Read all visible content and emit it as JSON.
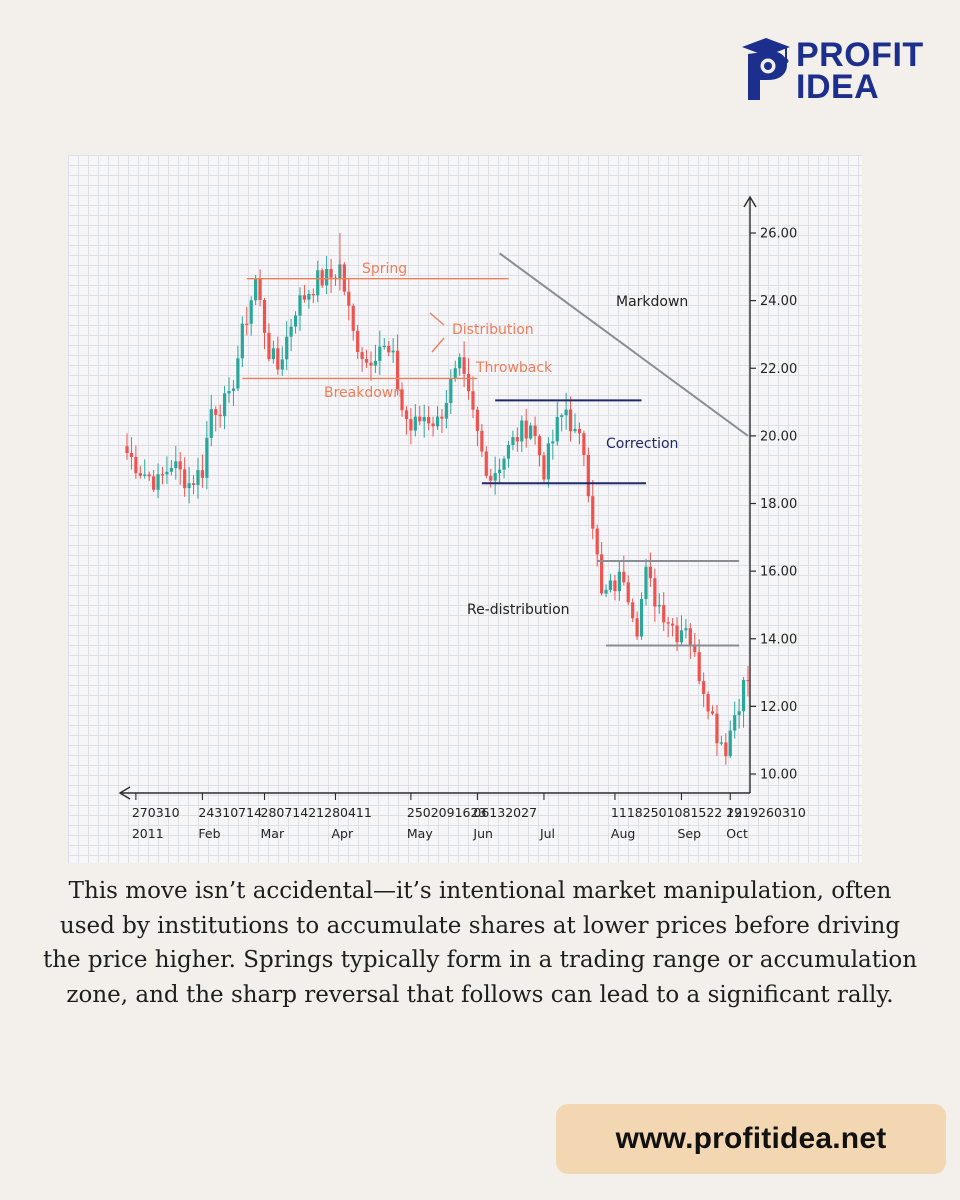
{
  "brand": {
    "line1": "PROFIT",
    "line2": "IDEA",
    "color": "#1d2f8c"
  },
  "caption": "This move isn’t accidental—it’s intentional market manipulation, often used by institutions to accumulate shares at lower prices before driving the price higher. Springs typically form in a trading range or accumulation zone, and the sharp reversal that follows can lead to a significant rally.",
  "website": "www.profitidea.net",
  "chart_data": {
    "type": "candlestick",
    "title": "",
    "ylim": [
      9,
      27
    ],
    "y_ticks": [
      "10.00",
      "12.00",
      "14.00",
      "16.00",
      "18.00",
      "20.00",
      "22.00",
      "24.00",
      "26.00"
    ],
    "x_index_range": [
      0,
      140
    ],
    "x_tick_groups": [
      {
        "days": "270310",
        "month": "2011",
        "x_index": 2
      },
      {
        "days": "24310714",
        "month": "Feb",
        "x_index": 17
      },
      {
        "days": "28071421280411",
        "month": "Mar",
        "x_index": 31
      },
      {
        "days": "",
        "month": "Apr",
        "x_index": 47
      },
      {
        "days": "2502091623",
        "month": "May",
        "x_index": 64
      },
      {
        "days": "06132027",
        "month": "Jun",
        "x_index": 79
      },
      {
        "days": "",
        "month": "Jul",
        "x_index": 94
      },
      {
        "days": "11182501081522 29",
        "month": "Aug",
        "x_index": 110
      },
      {
        "days": "",
        "month": "Sep",
        "x_index": 125
      },
      {
        "days": "1219260310",
        "month": "Oct",
        "x_index": 136
      }
    ],
    "colors": {
      "up": "#2aa79b",
      "down": "#ef5350",
      "annotation": "#ef7d57",
      "correction": "#1f2a6b",
      "neutral": "#8a8d95"
    },
    "anchors": [
      [
        0,
        19.5
      ],
      [
        3,
        19.0
      ],
      [
        7,
        18.6
      ],
      [
        10,
        19.2
      ],
      [
        14,
        18.6
      ],
      [
        17,
        19.0
      ],
      [
        19,
        20.8
      ],
      [
        23,
        21.0
      ],
      [
        26,
        23.0
      ],
      [
        29,
        24.6
      ],
      [
        32,
        22.5
      ],
      [
        34,
        22.0
      ],
      [
        38,
        23.8
      ],
      [
        41,
        24.3
      ],
      [
        43,
        24.6
      ],
      [
        46,
        24.7
      ],
      [
        48,
        25.0
      ],
      [
        51,
        23.0
      ],
      [
        54,
        22.2
      ],
      [
        57,
        22.7
      ],
      [
        60,
        22.2
      ],
      [
        62,
        20.8
      ],
      [
        64,
        20.2
      ],
      [
        67,
        20.6
      ],
      [
        70,
        20.4
      ],
      [
        73,
        21.5
      ],
      [
        75,
        22.0
      ],
      [
        78,
        20.6
      ],
      [
        80,
        19.5
      ],
      [
        82,
        18.8
      ],
      [
        85,
        19.4
      ],
      [
        88,
        20.0
      ],
      [
        91,
        20.4
      ],
      [
        94,
        19.0
      ],
      [
        97,
        20.3
      ],
      [
        99,
        20.8
      ],
      [
        101,
        20.0
      ],
      [
        103,
        19.6
      ],
      [
        105,
        17.5
      ],
      [
        107,
        15.2
      ],
      [
        110,
        15.6
      ],
      [
        112,
        15.9
      ],
      [
        115,
        14.4
      ],
      [
        117,
        15.9
      ],
      [
        119,
        15.2
      ],
      [
        121,
        14.8
      ],
      [
        124,
        14.2
      ],
      [
        126,
        14.5
      ],
      [
        128,
        13.4
      ],
      [
        131,
        12.2
      ],
      [
        133,
        11.2
      ],
      [
        135,
        10.8
      ],
      [
        137,
        11.8
      ],
      [
        139,
        12.6
      ],
      [
        140,
        12.8
      ]
    ],
    "candle_step": 1,
    "annotations": [
      {
        "label": "Spring",
        "color": "#ef7d57",
        "line": {
          "x": [
            27,
            86
          ],
          "y": 24.65
        }
      },
      {
        "label": "Distribution",
        "color": "#ef7d57",
        "arrows_from_index": [
          69,
          70
        ]
      },
      {
        "label": "Throwback",
        "color": "#ef7d57"
      },
      {
        "label": "Breakdown",
        "color": "#ef7d57",
        "line": {
          "x": [
            26,
            79
          ],
          "y": 21.7
        }
      },
      {
        "label": "Correction",
        "color": "#1f2a6b",
        "lines": [
          {
            "x": [
              83,
              116
            ],
            "y": 21.05
          },
          {
            "x": [
              80,
              117
            ],
            "y": 18.6
          }
        ]
      },
      {
        "label": "Markdown",
        "color": "#8a8d95",
        "line": {
          "x": [
            84,
            140
          ],
          "y": [
            25.4,
            20.0
          ]
        }
      },
      {
        "label": "Re-distribution",
        "color": "#8a8d95",
        "lines": [
          {
            "x": [
              106,
              138
            ],
            "y": 16.3
          },
          {
            "x": [
              108,
              138
            ],
            "y": 13.8
          }
        ]
      }
    ]
  }
}
